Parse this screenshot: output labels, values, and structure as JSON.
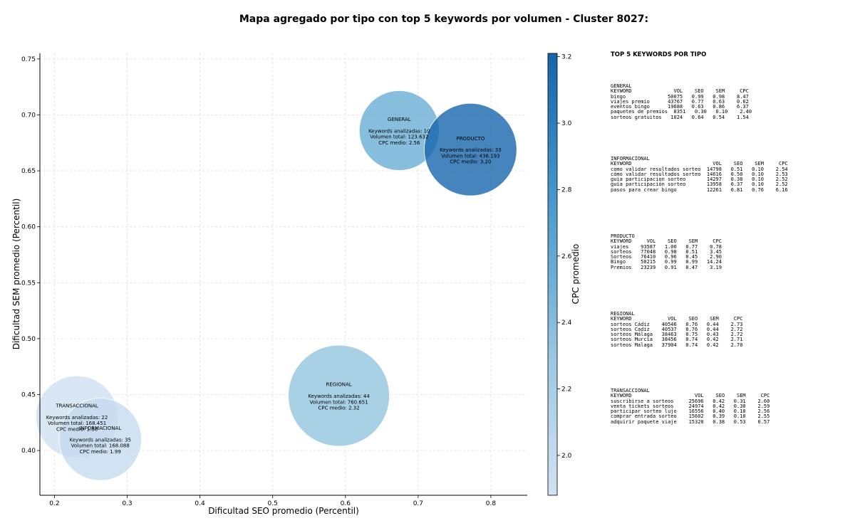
{
  "chart_data": {
    "type": "scatter",
    "title": "Mapa agregado por tipo con top 5 keywords por volumen - Cluster 8027:",
    "xlabel": "Dificultad SEO promedio (Percentil)",
    "ylabel": "Dificultad SEM promedio (Percentil)",
    "colorbar_label": "CPC promedio",
    "xlim": [
      0.18,
      0.85
    ],
    "ylim": [
      0.36,
      0.755
    ],
    "xticks": [
      0.2,
      0.3,
      0.4,
      0.5,
      0.6,
      0.7,
      0.8
    ],
    "yticks": [
      0.4,
      0.45,
      0.5,
      0.55,
      0.6,
      0.65,
      0.7,
      0.75
    ],
    "colorbar_range": [
      1.88,
      3.21
    ],
    "colorbar_ticks": [
      2.0,
      2.2,
      2.4,
      2.6,
      2.8,
      3.0,
      3.2
    ],
    "grid": true,
    "points": [
      {
        "label": "GENERAL",
        "x": 0.674,
        "y": 0.686,
        "cpc": 2.56,
        "count": 10,
        "volume": 123632,
        "lines": [
          "GENERAL",
          "",
          "Keywords analizadas: 10",
          "Volumen total: 123.632",
          "CPC medio: 2.56"
        ]
      },
      {
        "label": "PRODUCTO",
        "x": 0.772,
        "y": 0.669,
        "cpc": 3.2,
        "count": 33,
        "volume": 436193,
        "lines": [
          "PRODUCTO",
          "",
          "Keywords analizadas: 33",
          "Volumen total: 436.193",
          "CPC medio: 3.20"
        ]
      },
      {
        "label": "REGIONAL",
        "x": 0.591,
        "y": 0.449,
        "cpc": 2.32,
        "count": 44,
        "volume": 760651,
        "lines": [
          "REGIONAL",
          "",
          "Keywords analizadas: 44",
          "Volumen total: 760.651",
          "CPC medio: 2.32"
        ]
      },
      {
        "label": "TRANSACCIONAL",
        "x": 0.231,
        "y": 0.43,
        "cpc": 1.88,
        "count": 22,
        "volume": 168451,
        "lines": [
          "TRANSACCIONAL",
          "",
          "Keywords analizadas: 22",
          "Volumen total: 168.451",
          "CPC medio: 1.88"
        ]
      },
      {
        "label": "INFORMACIONAL",
        "x": 0.263,
        "y": 0.41,
        "cpc": 1.99,
        "count": 35,
        "volume": 168088,
        "lines": [
          "INFORMACIONAL",
          "",
          "Keywords analizadas: 35",
          "Volumen total: 168.088",
          "CPC medio: 1.99"
        ]
      }
    ]
  },
  "keyword_panel": {
    "title": "TOP 5 KEYWORDS POR TIPO",
    "groups": [
      {
        "name": "GENERAL",
        "text": "GENERAL\nKEYWORD              VOL    SEO    SEM     CPC\nbingo              50075   0.99   0.98    8.47\nviajes premio      43767   0.77   0.63    0.62\neventos bingo      19688   0.63   0.86    6.37\npaquetes de premios  8351   0.30   0.10    2.40\nsorteos gratuitos   1024   0.64   0.54    1.54"
      },
      {
        "name": "INFORMACIONAL",
        "text": "INFORMACIONAL\nKEYWORD                           VOL    SEO    SEM     CPC\ncomo validar resultados sorteo  14798   0.51   0.10    2.54\ncómo validar resultados sorteo  14616   0.50   0.10    2.53\nguia participacion sorteo       14297   0.38   0.10    2.52\nguía participación sorteo       13958   0.37   0.10    2.52\npasos para crear bingo          12261   0.81   0.76    6.16"
      },
      {
        "name": "PRODUCTO",
        "text": "PRODUCTO\nKEYWORD     VOL    SEO    SEM     CPC\nviajes    93587   1.00   0.77    0.78\nsorteos   77048   0.98   0.51    3.45\nSorteos   76410   0.96   0.45    2.90\nBingo     50215   0.99   0.99   14.24\nPremios   23239   0.91   0.47    3.19"
      },
      {
        "name": "REGIONAL",
        "text": "REGIONAL\nKEYWORD            VOL    SEO    SEM     CPC\nsorteos Cádiz    40546   0.76   0.44    2.73\nsorteos Cadiz    40537   0.76   0.44    2.72\nsorteos Málaga   38463   0.75   0.43    2.72\nsorteos Murcia   38456   0.74   0.42    2.71\nsorteos Malaga   37904   0.74   0.42    2.70"
      },
      {
        "name": "TRANSACCIONAL",
        "text": "TRANSACCIONAL\nKEYWORD                     VOL    SEO    SEM     CPC\nsuscribirse a sorteos     25696   0.42   0.31    2.60\nventa tickets sorteos     24974   0.42   0.30    2.59\nparticipar sorteo lujo    16556   0.40   0.10    2.56\ncomprar entrada sorteo    15602   0.39   0.10    2.55\nadquirir paquete viaje    15320   0.38   0.53    0.57"
      }
    ]
  }
}
